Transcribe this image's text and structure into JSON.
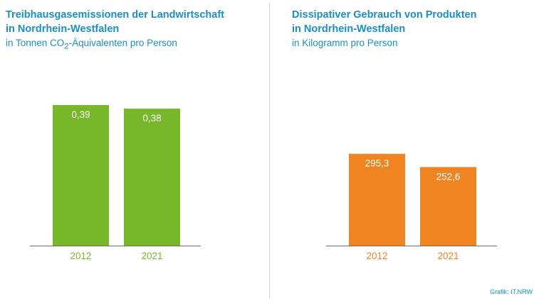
{
  "chart_data": [
    {
      "type": "bar",
      "title": [
        "Treibhausgasemissionen der Landwirtschaft",
        "in Nordrhein-Westfalen"
      ],
      "subtitle": {
        "pre": "in Tonnen CO",
        "sub": "2",
        "post": "-Äquivalenten pro Person"
      },
      "categories": [
        "2012",
        "2021"
      ],
      "values": [
        0.39,
        0.38
      ],
      "value_labels": [
        "0,39",
        "0,38"
      ],
      "ylim": [
        0,
        0.39
      ],
      "color": "#77b82a",
      "legend": "none",
      "grid": false
    },
    {
      "type": "bar",
      "title": [
        "Dissipativer Gebrauch von Produkten",
        "in Nordrhein-Westfalen"
      ],
      "subtitle": {
        "pre": "in Kilogramm pro Person",
        "sub": "",
        "post": ""
      },
      "categories": [
        "2012",
        "2021"
      ],
      "values": [
        295.3,
        252.6
      ],
      "value_labels": [
        "295,3",
        "252,6"
      ],
      "ylim": [
        0,
        452
      ],
      "color": "#f08421",
      "legend": "none",
      "grid": false
    }
  ],
  "colors": {
    "title": "#1a8fc6",
    "label": "#ffffff"
  },
  "source": "Grafik: IT.NRW"
}
